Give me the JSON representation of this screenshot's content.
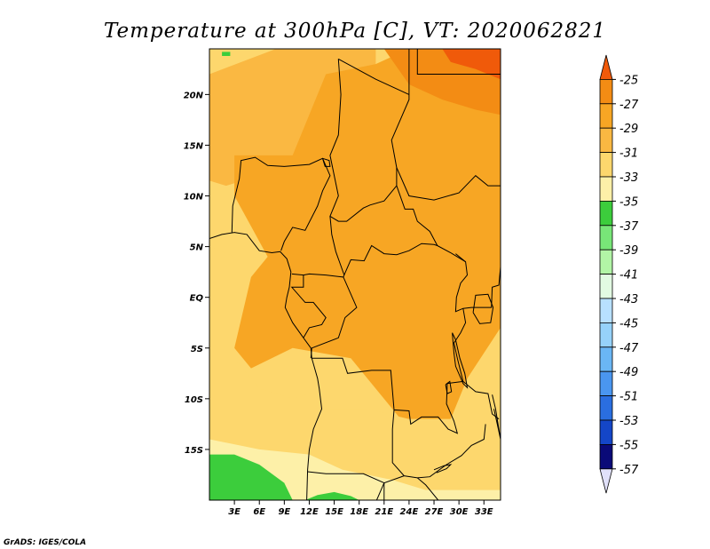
{
  "title": "Temperature at 300hPa [C], VT: 2020062821",
  "credit": "GrADS: IGES/COLA",
  "map": {
    "lon_range": [
      0,
      35
    ],
    "lat_range": [
      -20,
      24.5
    ],
    "x_ticks": [
      {
        "lon": 3,
        "label": "3E"
      },
      {
        "lon": 6,
        "label": "6E"
      },
      {
        "lon": 9,
        "label": "9E"
      },
      {
        "lon": 12,
        "label": "12E"
      },
      {
        "lon": 15,
        "label": "15E"
      },
      {
        "lon": 18,
        "label": "18E"
      },
      {
        "lon": 21,
        "label": "21E"
      },
      {
        "lon": 24,
        "label": "24E"
      },
      {
        "lon": 27,
        "label": "27E"
      },
      {
        "lon": 30,
        "label": "30E"
      },
      {
        "lon": 33,
        "label": "33E"
      }
    ],
    "y_ticks": [
      {
        "lat": 20,
        "label": "20N"
      },
      {
        "lat": 15,
        "label": "15N"
      },
      {
        "lat": 10,
        "label": "10N"
      },
      {
        "lat": 5,
        "label": "5N"
      },
      {
        "lat": 0,
        "label": "EQ"
      },
      {
        "lat": -5,
        "label": "5S"
      },
      {
        "lat": -10,
        "label": "10S"
      },
      {
        "lat": -15,
        "label": "15S"
      }
    ]
  },
  "colorbar": {
    "labels": [
      "-25",
      "-27",
      "-29",
      "-31",
      "-33",
      "-35",
      "-37",
      "-39",
      "-41",
      "-43",
      "-45",
      "-47",
      "-49",
      "-51",
      "-53",
      "-55",
      "-57"
    ],
    "colors": [
      "#f05a0a",
      "#f38c14",
      "#f7a624",
      "#fab842",
      "#fdd76d",
      "#fdf0a8",
      "#3ccd3c",
      "#78e678",
      "#b2f5a6",
      "#e2fbe2",
      "#b8e0ff",
      "#96d2fa",
      "#6ab6f5",
      "#4a96f0",
      "#2a6ee0",
      "#1446c8",
      "#0a0a78",
      "#e1e1fa"
    ]
  },
  "regions": [
    {
      "name": "sahel-north-warm-band",
      "color": "#fab842",
      "points": [
        [
          8,
          24.5
        ],
        [
          20,
          24.5
        ],
        [
          20,
          17
        ],
        [
          12,
          13
        ],
        [
          6,
          12
        ],
        [
          2,
          11
        ],
        [
          0,
          11.5
        ],
        [
          0,
          22
        ]
      ]
    },
    {
      "name": "central-warm-core",
      "color": "#f7a624",
      "points": [
        [
          3,
          14
        ],
        [
          10,
          14
        ],
        [
          14,
          22
        ],
        [
          20,
          23
        ],
        [
          24,
          24.5
        ],
        [
          35,
          24.5
        ],
        [
          35,
          -3
        ],
        [
          31,
          -8
        ],
        [
          29,
          -12
        ],
        [
          23,
          -12
        ],
        [
          17,
          -6
        ],
        [
          10,
          -5
        ],
        [
          5,
          -7
        ],
        [
          3,
          -5
        ],
        [
          5,
          2
        ],
        [
          7,
          4
        ],
        [
          5,
          7
        ],
        [
          3,
          10
        ]
      ]
    },
    {
      "name": "northeast-warmer",
      "color": "#f38c14",
      "points": [
        [
          21,
          24.5
        ],
        [
          35,
          24.5
        ],
        [
          35,
          18
        ],
        [
          32,
          18.5
        ],
        [
          28,
          19.5
        ],
        [
          24,
          21
        ]
      ]
    },
    {
      "name": "northeast-warmest",
      "color": "#f05a0a",
      "points": [
        [
          28,
          24.5
        ],
        [
          35,
          24.5
        ],
        [
          35,
          21.5
        ],
        [
          32,
          22.5
        ],
        [
          29,
          23.2
        ]
      ]
    },
    {
      "name": "southwest-cool-band",
      "color": "#fdd76d",
      "points": [
        [
          0,
          5
        ],
        [
          3,
          4
        ],
        [
          3,
          -6
        ],
        [
          6,
          -9
        ],
        [
          10,
          -10
        ],
        [
          14,
          -9
        ],
        [
          14,
          -11
        ],
        [
          19,
          -11
        ],
        [
          24,
          -12
        ],
        [
          29,
          -12
        ],
        [
          31,
          -9
        ],
        [
          35,
          -7
        ],
        [
          35,
          -20
        ],
        [
          0,
          -20
        ]
      ]
    },
    {
      "name": "south-cooler",
      "color": "#fdf0a8",
      "points": [
        [
          0,
          -14
        ],
        [
          6,
          -15
        ],
        [
          12,
          -15.5
        ],
        [
          16,
          -17
        ],
        [
          22,
          -18
        ],
        [
          26,
          -19
        ],
        [
          35,
          -19
        ],
        [
          35,
          -20
        ],
        [
          0,
          -20
        ]
      ]
    },
    {
      "name": "southwest-green",
      "color": "#3ccd3c",
      "points": [
        [
          0,
          -15.5
        ],
        [
          3,
          -15.5
        ],
        [
          6,
          -16.5
        ],
        [
          9,
          -18.3
        ],
        [
          10,
          -20
        ],
        [
          0,
          -20
        ]
      ]
    },
    {
      "name": "south-green-patch",
      "color": "#3ccd3c",
      "points": [
        [
          11.5,
          -20
        ],
        [
          13,
          -19.5
        ],
        [
          15,
          -19.2
        ],
        [
          17,
          -19.6
        ],
        [
          18,
          -20
        ]
      ]
    },
    {
      "name": "north-green-speck",
      "color": "#3ccd3c",
      "points": [
        [
          1.5,
          24.2
        ],
        [
          2.5,
          24.2
        ],
        [
          2.5,
          23.8
        ],
        [
          1.5,
          23.8
        ]
      ]
    }
  ],
  "boundaries": [
    {
      "name": "coastline-west-africa",
      "points": [
        [
          0,
          5.8
        ],
        [
          1.5,
          6.2
        ],
        [
          3,
          6.4
        ],
        [
          4.5,
          6.2
        ],
        [
          6,
          4.6
        ],
        [
          7.5,
          4.4
        ],
        [
          8.5,
          4.5
        ],
        [
          9.3,
          3.8
        ],
        [
          9.8,
          2.5
        ],
        [
          9.6,
          1
        ],
        [
          9.3,
          0
        ],
        [
          9.1,
          -1
        ],
        [
          10,
          -2.5
        ],
        [
          11.3,
          -4
        ],
        [
          12.2,
          -5
        ],
        [
          12.3,
          -6
        ],
        [
          13,
          -8
        ],
        [
          13.2,
          -9
        ],
        [
          13.5,
          -11
        ],
        [
          12.5,
          -13
        ],
        [
          12,
          -15
        ],
        [
          11.8,
          -17
        ],
        [
          11.7,
          -20
        ]
      ]
    },
    {
      "name": "border-nigeria",
      "points": [
        [
          2.7,
          6.4
        ],
        [
          2.8,
          9
        ],
        [
          3.6,
          11.7
        ],
        [
          3.8,
          13.5
        ],
        [
          5.5,
          13.8
        ],
        [
          7,
          13
        ],
        [
          9,
          12.9
        ],
        [
          12,
          13.1
        ],
        [
          13.6,
          13.7
        ],
        [
          14.5,
          12
        ],
        [
          13.6,
          10.5
        ],
        [
          13,
          9
        ],
        [
          11.5,
          6.6
        ],
        [
          10,
          6.9
        ],
        [
          9,
          5.5
        ],
        [
          8.6,
          4.6
        ]
      ]
    },
    {
      "name": "border-chad-niger",
      "points": [
        [
          15.5,
          23.5
        ],
        [
          15.8,
          20
        ],
        [
          15.5,
          16
        ],
        [
          14.5,
          14
        ],
        [
          15.5,
          10
        ],
        [
          14.5,
          8
        ],
        [
          15.5,
          7.5
        ],
        [
          16.5,
          7.5
        ],
        [
          18.5,
          8.8
        ],
        [
          19.3,
          9.1
        ],
        [
          21,
          9.5
        ],
        [
          22.5,
          11
        ],
        [
          22.5,
          12.8
        ],
        [
          21.9,
          15.5
        ],
        [
          24,
          19.5
        ],
        [
          24,
          20
        ],
        [
          24,
          24.5
        ]
      ]
    },
    {
      "name": "border-cameroon-car",
      "points": [
        [
          14.5,
          8
        ],
        [
          14.7,
          6.2
        ],
        [
          15.2,
          4.5
        ],
        [
          16.2,
          2.2
        ],
        [
          16.1,
          2.0
        ],
        [
          14,
          2.2
        ],
        [
          12,
          2.3
        ],
        [
          11.3,
          2.2
        ],
        [
          9.9,
          2.3
        ]
      ]
    },
    {
      "name": "border-car-drc",
      "points": [
        [
          16.2,
          2.2
        ],
        [
          17,
          3.7
        ],
        [
          18.6,
          3.6
        ],
        [
          19.5,
          5.1
        ],
        [
          21,
          4.3
        ],
        [
          22.5,
          4.2
        ],
        [
          24,
          4.6
        ],
        [
          25.5,
          5.3
        ],
        [
          27,
          5.2
        ],
        [
          27.4,
          5.1
        ],
        [
          29,
          4.4
        ],
        [
          30.8,
          3.5
        ]
      ]
    },
    {
      "name": "border-sudan-car",
      "points": [
        [
          22.5,
          11
        ],
        [
          23.5,
          8.7
        ],
        [
          24.5,
          8.7
        ],
        [
          25,
          7.5
        ],
        [
          26.5,
          6.5
        ],
        [
          27.4,
          5.1
        ]
      ]
    },
    {
      "name": "border-sudan-south",
      "points": [
        [
          22.5,
          12.8
        ],
        [
          24,
          10
        ],
        [
          27,
          9.6
        ],
        [
          30,
          10.3
        ],
        [
          32,
          12
        ],
        [
          33.5,
          11
        ],
        [
          35,
          11
        ]
      ]
    },
    {
      "name": "border-gabon-congo",
      "points": [
        [
          11.3,
          2.2
        ],
        [
          11.3,
          1
        ],
        [
          9.9,
          1
        ],
        [
          11.5,
          -0.5
        ],
        [
          12.5,
          -0.5
        ],
        [
          14,
          -2
        ],
        [
          13.5,
          -2.7
        ],
        [
          12,
          -3
        ],
        [
          11.3,
          -4
        ]
      ]
    },
    {
      "name": "border-congo-drc",
      "points": [
        [
          16.1,
          2.0
        ],
        [
          17.7,
          -1
        ],
        [
          16.3,
          -2
        ],
        [
          15.5,
          -4
        ],
        [
          12.3,
          -5
        ],
        [
          12.2,
          -6
        ]
      ]
    },
    {
      "name": "border-drc-angola",
      "points": [
        [
          12.3,
          -6
        ],
        [
          16,
          -6
        ],
        [
          16.6,
          -7.5
        ],
        [
          19.5,
          -7.2
        ],
        [
          21.8,
          -7.2
        ],
        [
          22.2,
          -11.1
        ],
        [
          24,
          -11.2
        ],
        [
          24.2,
          -12.5
        ],
        [
          25.5,
          -11.8
        ],
        [
          27.5,
          -11.8
        ],
        [
          28.7,
          -13
        ],
        [
          29.8,
          -13.4
        ],
        [
          29.4,
          -12.2
        ],
        [
          28.5,
          -10.5
        ],
        [
          28.6,
          -8.5
        ],
        [
          30.5,
          -8.3
        ]
      ]
    },
    {
      "name": "border-angola-zambia",
      "points": [
        [
          22.2,
          -11.1
        ],
        [
          22,
          -13
        ],
        [
          22,
          -16.3
        ],
        [
          23.4,
          -17.6
        ],
        [
          25,
          -17.8
        ],
        [
          26.5,
          -17.7
        ],
        [
          28.5,
          -16.5
        ],
        [
          30.3,
          -15.6
        ],
        [
          31.5,
          -14.6
        ],
        [
          33,
          -14
        ],
        [
          33.2,
          -12.5
        ]
      ]
    },
    {
      "name": "border-namibia",
      "points": [
        [
          11.8,
          -17.2
        ],
        [
          14,
          -17.4
        ],
        [
          18.5,
          -17.4
        ],
        [
          21,
          -18.3
        ],
        [
          21,
          -20
        ]
      ]
    },
    {
      "name": "border-zambia-south",
      "points": [
        [
          25,
          -17.8
        ],
        [
          26,
          -18.5
        ],
        [
          27.5,
          -20
        ]
      ]
    },
    {
      "name": "border-botswana",
      "points": [
        [
          20.1,
          -20
        ],
        [
          21,
          -18.3
        ],
        [
          23.4,
          -17.6
        ]
      ]
    },
    {
      "name": "border-uganda-kenya",
      "points": [
        [
          29.6,
          4.3
        ],
        [
          30.8,
          3.5
        ],
        [
          31,
          2.2
        ],
        [
          30.2,
          1.4
        ],
        [
          29.7,
          0
        ],
        [
          29.6,
          -1.4
        ],
        [
          30.5,
          -1.1
        ],
        [
          31.5,
          -1
        ],
        [
          33.9,
          -1
        ],
        [
          34,
          1
        ],
        [
          34.8,
          1.2
        ],
        [
          35,
          3
        ]
      ]
    },
    {
      "name": "border-tanzania",
      "points": [
        [
          30.5,
          -1.1
        ],
        [
          30.8,
          -2.5
        ],
        [
          30.2,
          -3.5
        ],
        [
          29.4,
          -4.5
        ],
        [
          29.8,
          -6
        ],
        [
          30.5,
          -8.3
        ],
        [
          32,
          -9.3
        ],
        [
          33.5,
          -9.5
        ],
        [
          34,
          -11.5
        ],
        [
          34.8,
          -12
        ]
      ]
    },
    {
      "name": "lake-tanganyika",
      "points": [
        [
          29.2,
          -3.5
        ],
        [
          29.4,
          -5.5
        ],
        [
          29.6,
          -6.8
        ],
        [
          30.5,
          -8.5
        ],
        [
          31,
          -8.9
        ],
        [
          30.7,
          -7.5
        ],
        [
          30.1,
          -6
        ],
        [
          29.6,
          -4.2
        ],
        [
          29.2,
          -3.5
        ]
      ]
    },
    {
      "name": "lake-victoria",
      "points": [
        [
          31.7,
          -1.5
        ],
        [
          32,
          0.2
        ],
        [
          33.5,
          0.3
        ],
        [
          34.1,
          -1
        ],
        [
          33.8,
          -2.5
        ],
        [
          32.5,
          -2.6
        ],
        [
          31.7,
          -1.5
        ]
      ]
    },
    {
      "name": "lake-malawi",
      "points": [
        [
          34,
          -9.6
        ],
        [
          34.4,
          -11
        ],
        [
          34.8,
          -13
        ],
        [
          35,
          -14
        ],
        [
          34.6,
          -12.5
        ],
        [
          34.2,
          -11
        ]
      ]
    },
    {
      "name": "lake-mweru",
      "points": [
        [
          28.4,
          -8.6
        ],
        [
          28.9,
          -8.3
        ],
        [
          29.1,
          -9.3
        ],
        [
          28.6,
          -9.5
        ],
        [
          28.4,
          -8.6
        ]
      ]
    },
    {
      "name": "lake-kariba",
      "points": [
        [
          27,
          -17
        ],
        [
          28.2,
          -16.6
        ],
        [
          29,
          -16.5
        ],
        [
          28.5,
          -16.9
        ],
        [
          27.3,
          -17.3
        ]
      ]
    },
    {
      "name": "lake-chad",
      "points": [
        [
          13.6,
          13.7
        ],
        [
          14.4,
          13.5
        ],
        [
          14.5,
          12.9
        ],
        [
          13.9,
          12.9
        ],
        [
          13.6,
          13.7
        ]
      ]
    },
    {
      "name": "border-egypt-libya",
      "points": [
        [
          25,
          24.5
        ],
        [
          25,
          22
        ],
        [
          31.5,
          22
        ],
        [
          35,
          22
        ]
      ]
    },
    {
      "name": "border-libya-chad-sudan",
      "points": [
        [
          15.5,
          23.5
        ],
        [
          20,
          21.5
        ],
        [
          24,
          20
        ]
      ]
    }
  ]
}
